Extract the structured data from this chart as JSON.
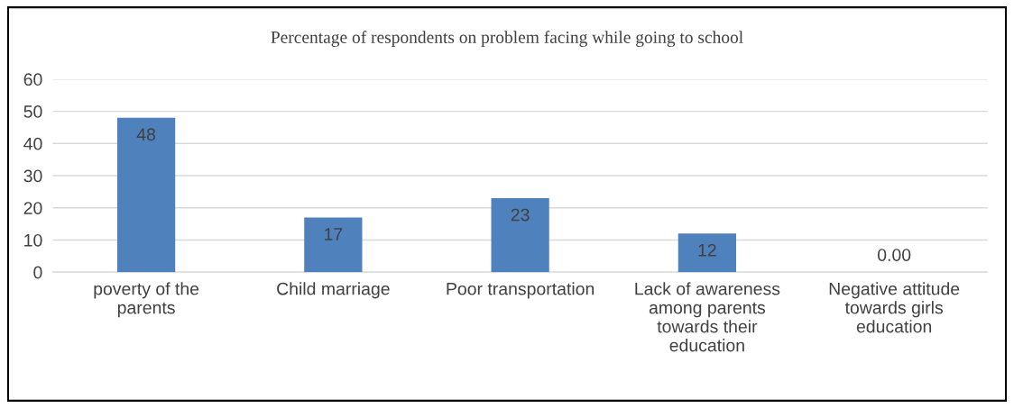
{
  "chart_data": {
    "type": "bar",
    "title": "Percentage of respondents on problem facing while going to school",
    "categories": [
      "poverty of the\nparents",
      "Child marriage",
      "Poor transportation",
      "Lack of awareness\namong parents\ntowards their\neducation",
      "Negative attitude\ntowards girls\neducation"
    ],
    "values": [
      48,
      17,
      23,
      12,
      0
    ],
    "value_labels": [
      "48",
      "17",
      "23",
      "12",
      "0.00"
    ],
    "color": "#4f81bd",
    "ylim": [
      0,
      60
    ],
    "yticks": [
      0,
      10,
      20,
      30,
      40,
      50,
      60
    ],
    "grid": "y",
    "legend": false
  }
}
